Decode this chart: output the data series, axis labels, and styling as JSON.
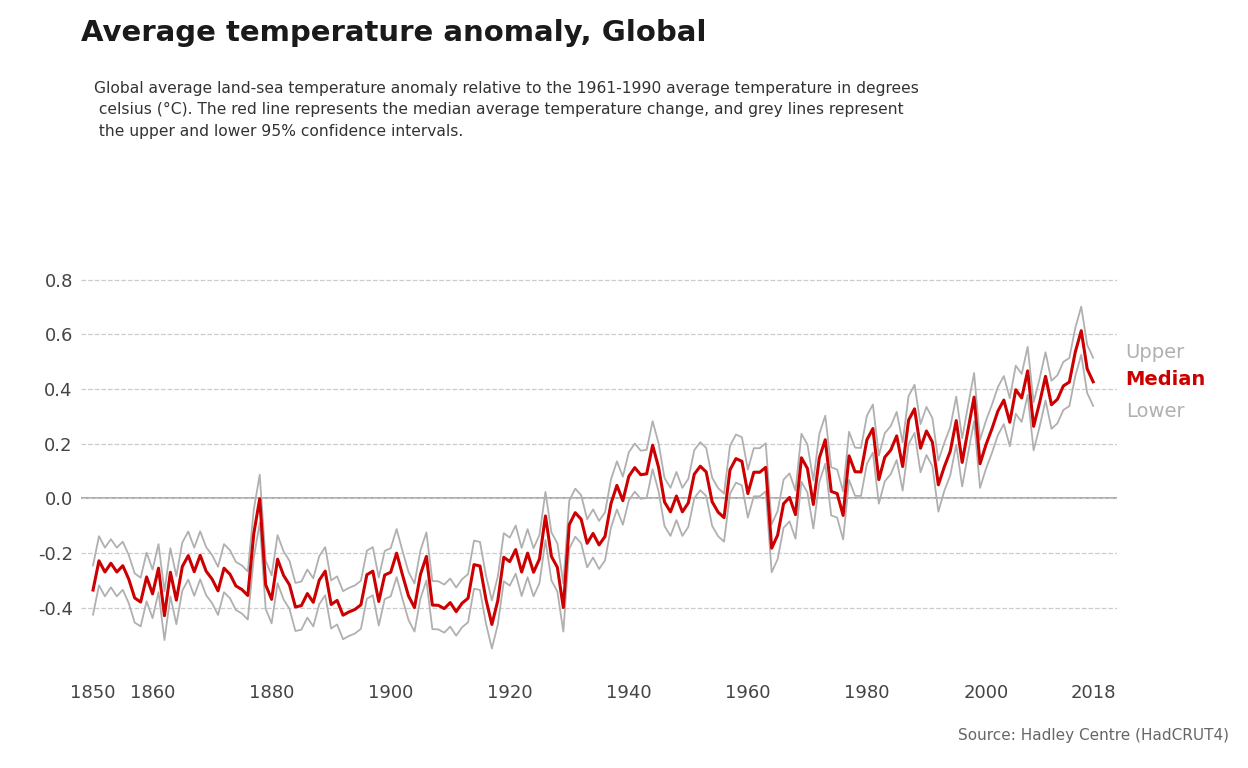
{
  "title": "Average temperature anomaly, Global",
  "subtitle": "Global average land-sea temperature anomaly relative to the 1961-1990 average temperature in degrees\n celsius (°C). The red line represents the median average temperature change, and grey lines represent\n the upper and lower 95% confidence intervals.",
  "source": "Source: Hadley Centre (HadCRUT4)",
  "title_color": "#1a1a1a",
  "subtitle_color": "#333333",
  "source_color": "#666666",
  "median_color": "#cc0000",
  "ci_color": "#b0b0b0",
  "background_color": "#ffffff",
  "grid_color": "#cccccc",
  "zero_line_color": "#999999",
  "xlim": [
    1848,
    2022
  ],
  "ylim": [
    -0.65,
    0.98
  ],
  "yticks": [
    -0.4,
    -0.2,
    0.0,
    0.2,
    0.4,
    0.6,
    0.8
  ],
  "xticks": [
    1850,
    1860,
    1880,
    1900,
    1920,
    1940,
    1960,
    1980,
    2000,
    2018
  ],
  "years": [
    1850,
    1851,
    1852,
    1853,
    1854,
    1855,
    1856,
    1857,
    1858,
    1859,
    1860,
    1861,
    1862,
    1863,
    1864,
    1865,
    1866,
    1867,
    1868,
    1869,
    1870,
    1871,
    1872,
    1873,
    1874,
    1875,
    1876,
    1877,
    1878,
    1879,
    1880,
    1881,
    1882,
    1883,
    1884,
    1885,
    1886,
    1887,
    1888,
    1889,
    1890,
    1891,
    1892,
    1893,
    1894,
    1895,
    1896,
    1897,
    1898,
    1899,
    1900,
    1901,
    1902,
    1903,
    1904,
    1905,
    1906,
    1907,
    1908,
    1909,
    1910,
    1911,
    1912,
    1913,
    1914,
    1915,
    1916,
    1917,
    1918,
    1919,
    1920,
    1921,
    1922,
    1923,
    1924,
    1925,
    1926,
    1927,
    1928,
    1929,
    1930,
    1931,
    1932,
    1933,
    1934,
    1935,
    1936,
    1937,
    1938,
    1939,
    1940,
    1941,
    1942,
    1943,
    1944,
    1945,
    1946,
    1947,
    1948,
    1949,
    1950,
    1951,
    1952,
    1953,
    1954,
    1955,
    1956,
    1957,
    1958,
    1959,
    1960,
    1961,
    1962,
    1963,
    1964,
    1965,
    1966,
    1967,
    1968,
    1969,
    1970,
    1971,
    1972,
    1973,
    1974,
    1975,
    1976,
    1977,
    1978,
    1979,
    1980,
    1981,
    1982,
    1983,
    1984,
    1985,
    1986,
    1987,
    1988,
    1989,
    1990,
    1991,
    1992,
    1993,
    1994,
    1995,
    1996,
    1997,
    1998,
    1999,
    2000,
    2001,
    2002,
    2003,
    2004,
    2005,
    2006,
    2007,
    2008,
    2009,
    2010,
    2011,
    2012,
    2013,
    2014,
    2015,
    2016,
    2017,
    2018
  ],
  "median": [
    -0.336,
    -0.229,
    -0.27,
    -0.238,
    -0.27,
    -0.247,
    -0.296,
    -0.365,
    -0.38,
    -0.288,
    -0.35,
    -0.256,
    -0.43,
    -0.271,
    -0.373,
    -0.25,
    -0.21,
    -0.269,
    -0.209,
    -0.267,
    -0.296,
    -0.339,
    -0.256,
    -0.278,
    -0.321,
    -0.334,
    -0.356,
    -0.13,
    -0.002,
    -0.317,
    -0.37,
    -0.223,
    -0.282,
    -0.317,
    -0.398,
    -0.393,
    -0.349,
    -0.381,
    -0.3,
    -0.267,
    -0.389,
    -0.374,
    -0.428,
    -0.416,
    -0.407,
    -0.39,
    -0.28,
    -0.267,
    -0.378,
    -0.281,
    -0.271,
    -0.201,
    -0.282,
    -0.358,
    -0.4,
    -0.279,
    -0.213,
    -0.391,
    -0.392,
    -0.404,
    -0.382,
    -0.415,
    -0.384,
    -0.366,
    -0.243,
    -0.248,
    -0.37,
    -0.462,
    -0.374,
    -0.216,
    -0.232,
    -0.188,
    -0.27,
    -0.201,
    -0.271,
    -0.222,
    -0.065,
    -0.213,
    -0.253,
    -0.4,
    -0.097,
    -0.053,
    -0.077,
    -0.165,
    -0.129,
    -0.171,
    -0.14,
    -0.02,
    0.047,
    -0.009,
    0.08,
    0.112,
    0.086,
    0.089,
    0.194,
    0.113,
    -0.014,
    -0.05,
    0.008,
    -0.05,
    -0.017,
    0.088,
    0.117,
    0.096,
    -0.013,
    -0.051,
    -0.071,
    0.104,
    0.145,
    0.135,
    0.017,
    0.095,
    0.095,
    0.113,
    -0.183,
    -0.135,
    -0.02,
    0.003,
    -0.06,
    0.148,
    0.109,
    -0.023,
    0.147,
    0.214,
    0.025,
    0.017,
    -0.063,
    0.155,
    0.097,
    0.096,
    0.214,
    0.255,
    0.068,
    0.15,
    0.176,
    0.228,
    0.116,
    0.286,
    0.327,
    0.183,
    0.246,
    0.205,
    0.049,
    0.115,
    0.172,
    0.284,
    0.131,
    0.253,
    0.37,
    0.126,
    0.196,
    0.254,
    0.319,
    0.359,
    0.278,
    0.397,
    0.367,
    0.466,
    0.263,
    0.349,
    0.446,
    0.342,
    0.362,
    0.411,
    0.425,
    0.535,
    0.613,
    0.473,
    0.426
  ],
  "upper": [
    -0.246,
    -0.139,
    -0.181,
    -0.15,
    -0.181,
    -0.159,
    -0.208,
    -0.275,
    -0.291,
    -0.199,
    -0.261,
    -0.168,
    -0.341,
    -0.183,
    -0.285,
    -0.162,
    -0.122,
    -0.181,
    -0.121,
    -0.179,
    -0.208,
    -0.251,
    -0.168,
    -0.19,
    -0.233,
    -0.246,
    -0.268,
    -0.042,
    0.086,
    -0.229,
    -0.282,
    -0.135,
    -0.194,
    -0.229,
    -0.31,
    -0.305,
    -0.261,
    -0.293,
    -0.212,
    -0.179,
    -0.301,
    -0.286,
    -0.34,
    -0.328,
    -0.319,
    -0.302,
    -0.192,
    -0.179,
    -0.29,
    -0.193,
    -0.183,
    -0.113,
    -0.194,
    -0.27,
    -0.312,
    -0.191,
    -0.125,
    -0.303,
    -0.304,
    -0.316,
    -0.294,
    -0.327,
    -0.296,
    -0.278,
    -0.155,
    -0.16,
    -0.282,
    -0.374,
    -0.286,
    -0.128,
    -0.144,
    -0.1,
    -0.182,
    -0.113,
    -0.183,
    -0.134,
    0.023,
    -0.125,
    -0.165,
    -0.312,
    -0.009,
    0.035,
    0.011,
    -0.077,
    -0.041,
    -0.083,
    -0.052,
    0.068,
    0.135,
    0.079,
    0.168,
    0.2,
    0.174,
    0.177,
    0.282,
    0.201,
    0.074,
    0.038,
    0.096,
    0.038,
    0.071,
    0.176,
    0.205,
    0.184,
    0.075,
    0.037,
    0.017,
    0.192,
    0.233,
    0.223,
    0.105,
    0.183,
    0.183,
    0.201,
    -0.095,
    -0.047,
    0.068,
    0.091,
    0.028,
    0.236,
    0.197,
    0.065,
    0.235,
    0.302,
    0.113,
    0.105,
    0.025,
    0.243,
    0.185,
    0.184,
    0.302,
    0.343,
    0.156,
    0.238,
    0.264,
    0.316,
    0.204,
    0.374,
    0.415,
    0.271,
    0.334,
    0.293,
    0.137,
    0.203,
    0.26,
    0.372,
    0.219,
    0.341,
    0.458,
    0.214,
    0.284,
    0.342,
    0.407,
    0.447,
    0.366,
    0.485,
    0.455,
    0.554,
    0.351,
    0.437,
    0.534,
    0.43,
    0.45,
    0.499,
    0.513,
    0.623,
    0.701,
    0.561,
    0.514
  ],
  "lower": [
    -0.426,
    -0.319,
    -0.359,
    -0.326,
    -0.359,
    -0.335,
    -0.384,
    -0.455,
    -0.469,
    -0.377,
    -0.439,
    -0.344,
    -0.519,
    -0.359,
    -0.461,
    -0.338,
    -0.298,
    -0.357,
    -0.297,
    -0.355,
    -0.384,
    -0.427,
    -0.344,
    -0.366,
    -0.409,
    -0.422,
    -0.444,
    -0.218,
    -0.09,
    -0.405,
    -0.458,
    -0.311,
    -0.37,
    -0.405,
    -0.486,
    -0.481,
    -0.437,
    -0.469,
    -0.388,
    -0.355,
    -0.477,
    -0.462,
    -0.516,
    -0.504,
    -0.495,
    -0.478,
    -0.368,
    -0.355,
    -0.466,
    -0.369,
    -0.359,
    -0.289,
    -0.37,
    -0.446,
    -0.488,
    -0.367,
    -0.301,
    -0.479,
    -0.48,
    -0.492,
    -0.47,
    -0.503,
    -0.472,
    -0.454,
    -0.331,
    -0.336,
    -0.458,
    -0.55,
    -0.462,
    -0.304,
    -0.32,
    -0.276,
    -0.358,
    -0.289,
    -0.359,
    -0.31,
    -0.153,
    -0.301,
    -0.341,
    -0.488,
    -0.185,
    -0.141,
    -0.165,
    -0.253,
    -0.217,
    -0.259,
    -0.228,
    -0.108,
    -0.041,
    -0.097,
    -0.008,
    0.024,
    -0.002,
    0.001,
    0.106,
    0.025,
    -0.102,
    -0.138,
    -0.08,
    -0.138,
    -0.105,
    -0.0,
    0.029,
    0.008,
    -0.101,
    -0.139,
    -0.159,
    0.016,
    0.057,
    0.047,
    -0.071,
    0.007,
    0.007,
    0.025,
    -0.271,
    -0.223,
    -0.108,
    -0.085,
    -0.148,
    0.06,
    0.021,
    -0.111,
    0.059,
    0.126,
    -0.063,
    -0.071,
    -0.151,
    0.067,
    0.009,
    0.008,
    0.126,
    0.167,
    -0.02,
    0.062,
    0.088,
    0.14,
    0.028,
    0.198,
    0.239,
    0.095,
    0.158,
    0.117,
    -0.049,
    0.027,
    0.084,
    0.196,
    0.043,
    0.165,
    0.282,
    0.038,
    0.108,
    0.166,
    0.231,
    0.271,
    0.19,
    0.309,
    0.279,
    0.378,
    0.175,
    0.261,
    0.358,
    0.254,
    0.274,
    0.323,
    0.337,
    0.447,
    0.525,
    0.385,
    0.338
  ]
}
